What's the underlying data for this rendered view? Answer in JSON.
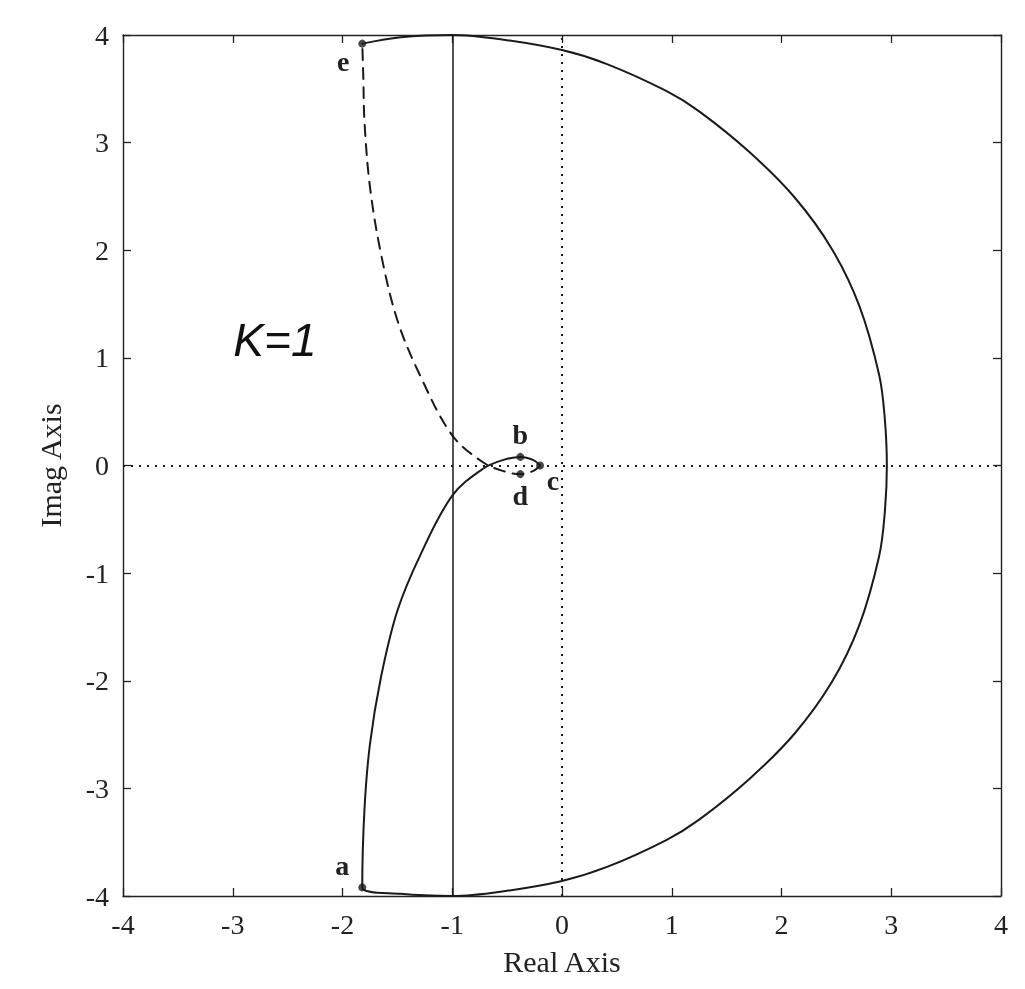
{
  "chart_data": {
    "type": "line",
    "xlabel": "Real Axis",
    "ylabel": "Imag Axis",
    "xlim": [
      -4,
      4
    ],
    "xticks": [
      -4,
      -3,
      -2,
      -1,
      0,
      1,
      2,
      3,
      4
    ],
    "ylim": [
      -4,
      4
    ],
    "yticks": [
      -4,
      -3,
      -2,
      -1,
      0,
      1,
      2,
      3,
      4
    ],
    "series": [
      {
        "color": "#1a1a1a",
        "line_style": "solid",
        "marker": "none",
        "x": [
          -1.82,
          -1.47,
          -1.0,
          -0.56,
          0.0,
          0.41,
          0.95,
          1.25,
          1.71,
          2.12,
          2.46,
          2.71,
          2.89,
          2.94,
          2.96,
          2.94,
          2.89,
          2.71,
          2.46,
          2.12,
          1.71,
          1.25,
          0.95,
          0.41,
          0.0,
          -0.56,
          -1.0,
          -1.47,
          -1.82,
          -1.8,
          -1.75,
          -1.65,
          -1.5,
          -1.29,
          -1.0,
          -0.72,
          -0.54,
          -0.38,
          -0.26,
          -0.2
        ],
        "values": [
          3.92,
          3.98,
          4.0,
          3.96,
          3.86,
          3.73,
          3.48,
          3.29,
          2.91,
          2.49,
          2.01,
          1.48,
          0.84,
          0.45,
          0.0,
          -0.45,
          -0.84,
          -1.48,
          -2.01,
          -2.49,
          -2.91,
          -3.29,
          -3.48,
          -3.73,
          -3.86,
          -3.96,
          -4.0,
          -3.98,
          -3.92,
          -3.2,
          -2.59,
          -1.97,
          -1.35,
          -0.83,
          -0.28,
          -0.03,
          0.05,
          0.08,
          0.05,
          0.0
        ]
      },
      {
        "color": "#1a1a1a",
        "line_style": "dashed",
        "marker": "none",
        "x": [
          -0.2,
          -0.26,
          -0.38,
          -0.54,
          -0.72,
          -1.0,
          -1.29,
          -1.5,
          -1.65,
          -1.75,
          -1.8,
          -1.81,
          -1.82
        ],
        "values": [
          0.0,
          -0.05,
          -0.08,
          -0.05,
          0.03,
          0.28,
          0.83,
          1.35,
          1.97,
          2.59,
          3.2,
          3.6,
          3.92
        ]
      },
      {
        "type": "scatter",
        "color": "#1a1a1a",
        "marker": "circle",
        "x": [
          -1.82,
          -0.38,
          -0.2,
          -0.38,
          -1.82
        ],
        "values": [
          -3.92,
          0.08,
          0.0,
          -0.08,
          3.92
        ]
      }
    ],
    "ref_lines": [
      {
        "axis": "x",
        "value": -1,
        "color": "#1a1a1a",
        "line_style": "solid"
      },
      {
        "axis": "x",
        "value": 0,
        "color": "#1a1a1a",
        "line_style": "dotted"
      },
      {
        "axis": "y",
        "value": 0,
        "color": "#1a1a1a",
        "line_style": "dotted"
      }
    ],
    "annotations": [
      {
        "text": "a",
        "x": -1.82,
        "y": -3.92
      },
      {
        "text": "b",
        "x": -0.38,
        "y": 0.08
      },
      {
        "text": "c",
        "x": -0.2,
        "y": 0.0
      },
      {
        "text": "d",
        "x": -0.38,
        "y": -0.08
      },
      {
        "text": "e",
        "x": -1.82,
        "y": 3.92
      },
      "K=1"
    ]
  }
}
